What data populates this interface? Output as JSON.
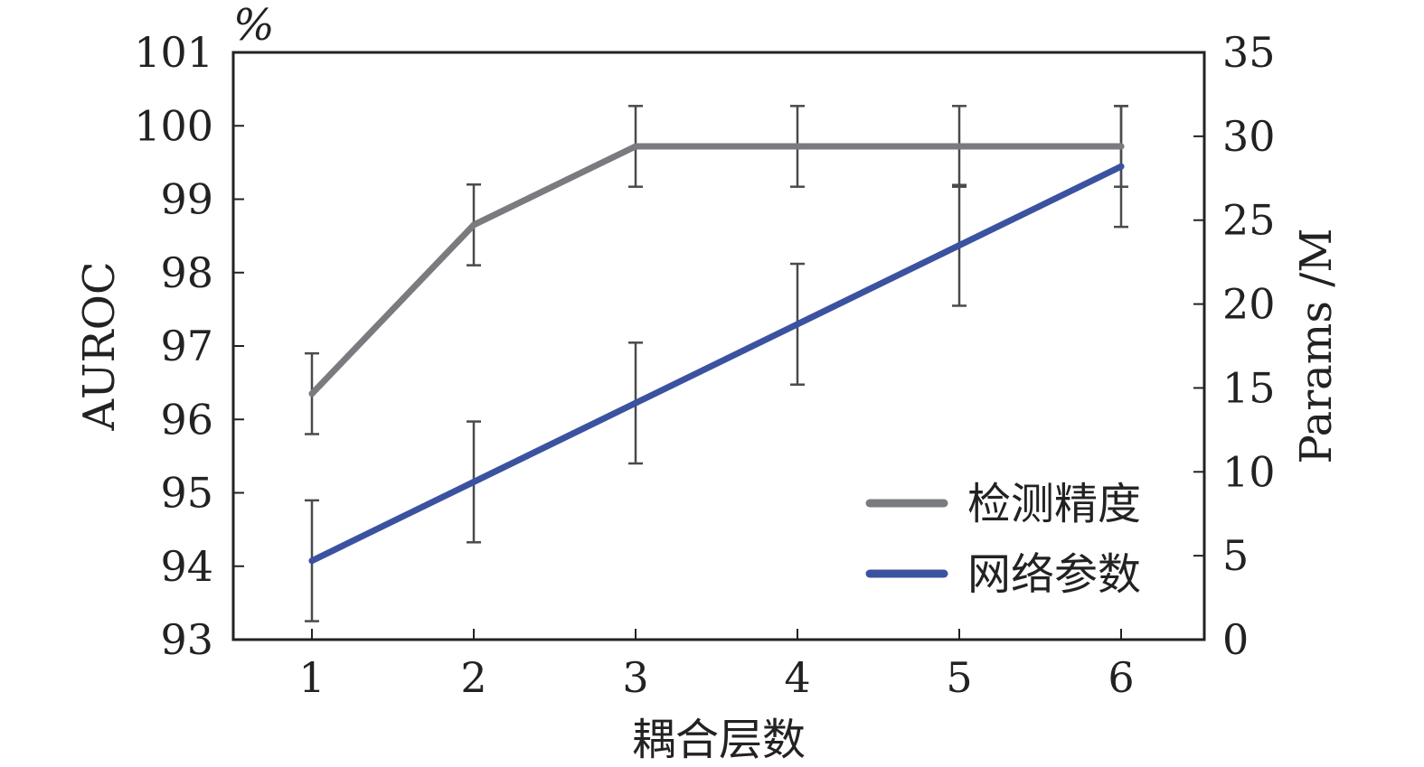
{
  "chart_data": {
    "type": "line",
    "x": [
      1,
      2,
      3,
      4,
      5,
      6
    ],
    "xlabel": "耦合层数",
    "y_left": {
      "label": "AUROC",
      "unit": "%",
      "range": [
        93,
        101
      ],
      "ticks": [
        93,
        94,
        95,
        96,
        97,
        98,
        99,
        100,
        101
      ]
    },
    "y_right": {
      "label": "Params /M",
      "range": [
        0,
        35
      ],
      "ticks": [
        0,
        5,
        10,
        15,
        20,
        25,
        30,
        35
      ]
    },
    "x_ticks": [
      1,
      2,
      3,
      4,
      5,
      6
    ],
    "legend": {
      "position": "bottom-right"
    },
    "series": [
      {
        "name": "检测精度",
        "axis": "left",
        "color": "#7a7b7e",
        "values": [
          96.35,
          98.65,
          99.72,
          99.72,
          99.72,
          99.72
        ],
        "error_low": [
          95.8,
          98.1,
          99.17,
          99.17,
          99.17,
          99.17
        ],
        "error_high": [
          96.9,
          99.2,
          100.27,
          100.27,
          100.27,
          100.27
        ]
      },
      {
        "name": "网络参数",
        "axis": "right",
        "color": "#3b52a0",
        "values": [
          4.7,
          9.4,
          14.1,
          18.8,
          23.5,
          28.2
        ],
        "error_low": [
          1.1,
          5.8,
          10.5,
          15.2,
          19.9,
          24.6
        ],
        "error_high": [
          8.3,
          13.0,
          17.7,
          22.4,
          27.1,
          31.8
        ]
      }
    ]
  }
}
